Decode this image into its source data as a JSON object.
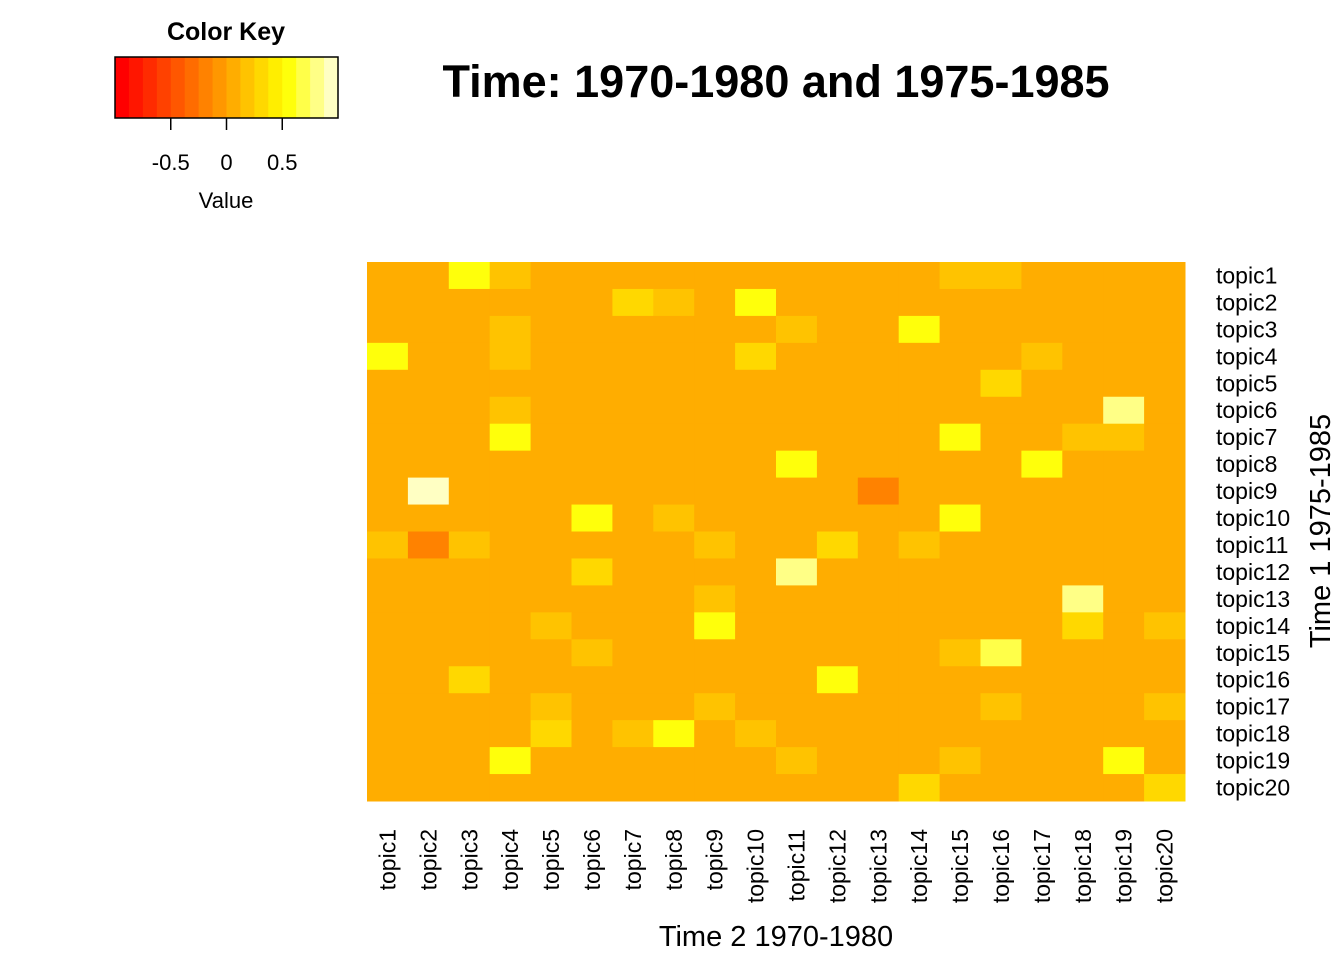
{
  "chart_data": {
    "type": "heatmap",
    "title": "Time: 1970-1980 and 1975-1985",
    "xlabel": "Time 2 1970-1980",
    "ylabel": "Time 1 1975-1985",
    "x_categories": [
      "topic1",
      "topic2",
      "topic3",
      "topic4",
      "topic5",
      "topic6",
      "topic7",
      "topic8",
      "topic9",
      "topic10",
      "topic11",
      "topic12",
      "topic13",
      "topic14",
      "topic15",
      "topic16",
      "topic17",
      "topic18",
      "topic19",
      "topic20"
    ],
    "y_categories": [
      "topic1",
      "topic2",
      "topic3",
      "topic4",
      "topic5",
      "topic6",
      "topic7",
      "topic8",
      "topic9",
      "topic10",
      "topic11",
      "topic12",
      "topic13",
      "topic14",
      "topic15",
      "topic16",
      "topic17",
      "topic18",
      "topic19",
      "topic20"
    ],
    "values": [
      [
        0,
        0,
        0.6,
        0.15,
        0,
        0,
        0,
        0,
        0,
        0,
        0,
        0,
        0,
        0,
        0.15,
        0.2,
        0,
        0,
        0,
        0
      ],
      [
        0,
        0,
        0,
        0,
        0,
        0,
        0.35,
        0.15,
        0,
        0.55,
        0,
        0,
        0,
        0,
        0,
        0,
        0,
        0,
        0,
        0
      ],
      [
        0,
        0,
        0,
        0.15,
        0,
        0,
        0,
        0,
        0,
        0,
        0.15,
        0,
        0,
        0.6,
        0,
        0,
        0,
        0,
        0,
        0
      ],
      [
        0.55,
        0,
        0,
        0.15,
        0,
        0,
        0,
        0,
        0,
        0.35,
        0,
        0,
        0,
        0,
        0,
        0,
        0.15,
        0,
        0,
        0
      ],
      [
        0,
        0,
        0,
        0,
        0,
        0,
        0,
        0,
        0,
        0,
        0,
        0,
        0,
        0,
        0,
        0.35,
        0,
        0,
        0,
        0
      ],
      [
        0,
        0,
        0,
        0.15,
        0,
        0,
        0,
        0,
        0,
        0,
        0,
        0,
        0,
        0,
        0,
        0,
        0,
        0,
        0.8,
        0
      ],
      [
        0,
        0,
        0,
        0.55,
        0,
        0,
        0,
        0,
        0,
        0,
        0,
        0,
        0,
        0,
        0.55,
        0,
        0,
        0.15,
        0.15,
        0
      ],
      [
        0,
        0,
        0,
        0,
        0,
        0,
        0,
        0,
        0,
        0,
        0.55,
        0,
        0,
        0,
        0,
        0,
        0.6,
        0,
        0,
        0
      ],
      [
        0,
        0.95,
        0,
        0,
        0,
        0,
        0,
        0,
        0,
        0,
        0,
        0,
        -0.2,
        0,
        0,
        0,
        0,
        0,
        0,
        0
      ],
      [
        0,
        0,
        0,
        0,
        0,
        0.6,
        0,
        0.15,
        0,
        0,
        0,
        0,
        0,
        0,
        0.6,
        0,
        0,
        0,
        0,
        0
      ],
      [
        0.15,
        -0.2,
        0.15,
        0,
        0,
        0,
        0,
        0,
        0.15,
        0,
        0,
        0.3,
        0,
        0.15,
        0,
        0,
        0,
        0,
        0,
        0
      ],
      [
        0,
        0,
        0,
        0,
        0,
        0.35,
        0,
        0,
        0,
        0,
        0.75,
        0,
        0,
        0,
        0,
        0,
        0,
        0,
        0,
        0
      ],
      [
        0,
        0,
        0,
        0,
        0,
        0,
        0,
        0,
        0.15,
        0,
        0,
        0,
        0,
        0,
        0,
        0,
        0,
        0.85,
        0,
        0
      ],
      [
        0,
        0,
        0,
        0,
        0.15,
        0,
        0,
        0,
        0.6,
        0,
        0,
        0,
        0,
        0,
        0,
        0,
        0,
        0.35,
        0,
        0.15
      ],
      [
        0,
        0,
        0,
        0,
        0,
        0.15,
        0,
        0,
        0,
        0,
        0,
        0,
        0,
        0,
        0.15,
        0.7,
        0,
        0,
        0,
        0
      ],
      [
        0,
        0,
        0.35,
        0,
        0,
        0,
        0,
        0,
        0,
        0,
        0,
        0.6,
        0,
        0,
        0,
        0,
        0,
        0,
        0,
        0
      ],
      [
        0,
        0,
        0,
        0,
        0.15,
        0,
        0,
        0,
        0.15,
        0,
        0,
        0,
        0,
        0,
        0,
        0.15,
        0,
        0,
        0,
        0.15
      ],
      [
        0,
        0,
        0,
        0,
        0.3,
        0,
        0.15,
        0.6,
        0,
        0.15,
        0,
        0,
        0,
        0,
        0,
        0,
        0,
        0,
        0,
        0
      ],
      [
        0,
        0,
        0,
        0.6,
        0,
        0,
        0,
        0,
        0,
        0,
        0.15,
        0,
        0,
        0,
        0.15,
        0,
        0,
        0,
        0.6,
        0
      ],
      [
        0,
        0,
        0,
        0,
        0,
        0,
        0,
        0,
        0,
        0,
        0,
        0,
        0,
        0.35,
        0,
        0,
        0,
        0,
        0,
        0.35
      ]
    ],
    "color_key": {
      "title": "Color Key",
      "label": "Value",
      "ticks": [
        -0.5,
        0,
        0.5
      ],
      "tick_labels": [
        "-0.5",
        "0",
        "0.5"
      ],
      "range": [
        -1,
        1
      ],
      "colors": [
        "#ff0000",
        "#ff1600",
        "#ff2b00",
        "#ff4100",
        "#ff5700",
        "#ff6c00",
        "#ff8200",
        "#ff9700",
        "#ffad00",
        "#ffc300",
        "#ffd800",
        "#ffee00",
        "#ffff0b",
        "#ffff49",
        "#ffff86",
        "#ffffc3"
      ]
    }
  }
}
